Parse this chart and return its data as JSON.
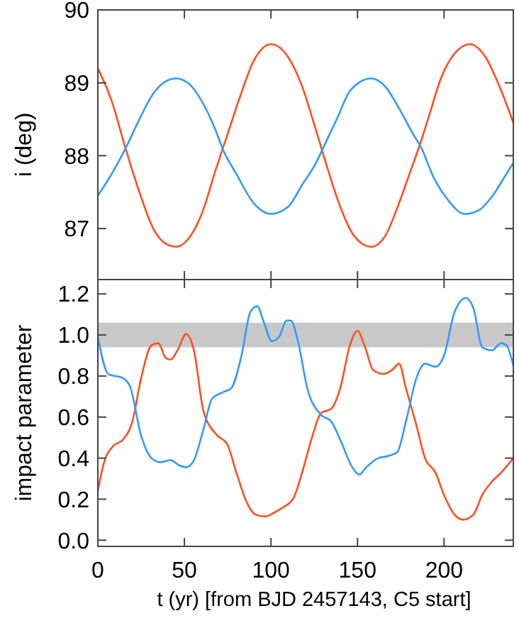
{
  "chart_data": [
    {
      "type": "line",
      "ylabel": "i (deg)",
      "xlim": [
        0,
        240
      ],
      "xticks": [
        0,
        50,
        100,
        150,
        200
      ],
      "ylim": [
        86.3,
        90
      ],
      "yticks": [
        87,
        88,
        89,
        90
      ],
      "tick_labels": "y",
      "grid": false,
      "series": [
        {
          "color": "#ff4f1f",
          "x": [
            0,
            8,
            16,
            24,
            32,
            40,
            45,
            52,
            60,
            68,
            75,
            82,
            90,
            100,
            110,
            118,
            126,
            133,
            140,
            148,
            158,
            166,
            174,
            180,
            186,
            192,
            198,
            206,
            215,
            224,
            232,
            240
          ],
          "values": [
            89.2,
            88.75,
            88.1,
            87.5,
            87.0,
            86.78,
            86.75,
            86.85,
            87.2,
            87.8,
            88.3,
            88.8,
            89.3,
            89.53,
            89.35,
            88.95,
            88.35,
            87.8,
            87.3,
            86.9,
            86.75,
            86.9,
            87.35,
            87.75,
            88.15,
            88.6,
            89.05,
            89.4,
            89.53,
            89.35,
            88.95,
            88.45
          ]
        },
        {
          "color": "#3399ff",
          "x": [
            0,
            8,
            16,
            24,
            32,
            40,
            45,
            52,
            60,
            68,
            72,
            80,
            90,
            100,
            110,
            118,
            126,
            130,
            138,
            146,
            158,
            166,
            174,
            182,
            187,
            194,
            202,
            212,
            220,
            228,
            236,
            240
          ],
          "values": [
            87.45,
            87.75,
            88.1,
            88.5,
            88.85,
            89.03,
            89.06,
            89.0,
            88.75,
            88.35,
            88.1,
            87.75,
            87.35,
            87.2,
            87.3,
            87.6,
            87.9,
            88.1,
            88.5,
            88.9,
            89.06,
            88.95,
            88.65,
            88.3,
            88.1,
            87.7,
            87.4,
            87.2,
            87.25,
            87.45,
            87.75,
            87.9
          ]
        }
      ]
    },
    {
      "type": "line",
      "xlabel": "t (yr) [from BJD 2457143, C5 start]",
      "ylabel": "impact parameter",
      "xlim": [
        0,
        240
      ],
      "xticks": [
        0,
        50,
        100,
        150,
        200
      ],
      "ylim": [
        -0.03,
        1.27
      ],
      "yticks": [
        {
          "value": 0,
          "label": "0.0"
        },
        0.2,
        0.4,
        0.6,
        0.8,
        {
          "value": 1,
          "label": "1.0"
        },
        1.2
      ],
      "grid": false,
      "bands": [
        {
          "axis": "y",
          "from": 0.94,
          "to": 1.06,
          "color": "#c8c8c8"
        }
      ],
      "series": [
        {
          "color": "#ff4f1f",
          "x": [
            0,
            3.6,
            9,
            14.5,
            20,
            25,
            31,
            35,
            39,
            42,
            46,
            51,
            55.5,
            61,
            69,
            74.6,
            80,
            85.5,
            91,
            96.5,
            102,
            107,
            113,
            118,
            124,
            129,
            134.7,
            140,
            145.6,
            150,
            154,
            159,
            165,
            170,
            174,
            178,
            184,
            189,
            195,
            200,
            206,
            211,
            217,
            222,
            227.6,
            233,
            240
          ],
          "values": [
            0.24,
            0.38,
            0.46,
            0.49,
            0.58,
            0.79,
            0.95,
            0.96,
            0.89,
            0.88,
            0.925,
            1.005,
            0.925,
            0.63,
            0.51,
            0.47,
            0.33,
            0.195,
            0.125,
            0.115,
            0.135,
            0.16,
            0.205,
            0.33,
            0.51,
            0.62,
            0.64,
            0.74,
            0.95,
            1.02,
            0.95,
            0.83,
            0.81,
            0.83,
            0.86,
            0.74,
            0.56,
            0.4,
            0.33,
            0.22,
            0.125,
            0.1,
            0.125,
            0.22,
            0.285,
            0.33,
            0.4
          ]
        },
        {
          "color": "#3399ff",
          "x": [
            0,
            6,
            14.5,
            18.6,
            25,
            31,
            36,
            42,
            47,
            51,
            55.5,
            61,
            66,
            72,
            77,
            83,
            88,
            92,
            96,
            100.5,
            104.6,
            109,
            111.5,
            115.6,
            121,
            129,
            134.7,
            140,
            147,
            151,
            155,
            162,
            167.5,
            173,
            178,
            184,
            189,
            195,
            200,
            206,
            212.5,
            217,
            222,
            227.6,
            233,
            236,
            240
          ],
          "values": [
            0.99,
            0.81,
            0.79,
            0.75,
            0.51,
            0.4,
            0.38,
            0.39,
            0.365,
            0.355,
            0.39,
            0.54,
            0.69,
            0.72,
            0.74,
            0.9,
            1.11,
            1.14,
            1.06,
            0.97,
            0.99,
            1.07,
            1.07,
            0.97,
            0.74,
            0.61,
            0.58,
            0.49,
            0.355,
            0.32,
            0.355,
            0.4,
            0.41,
            0.43,
            0.58,
            0.79,
            0.86,
            0.845,
            0.9,
            1.11,
            1.18,
            1.13,
            0.94,
            0.925,
            0.96,
            0.95,
            0.85
          ]
        }
      ]
    }
  ]
}
